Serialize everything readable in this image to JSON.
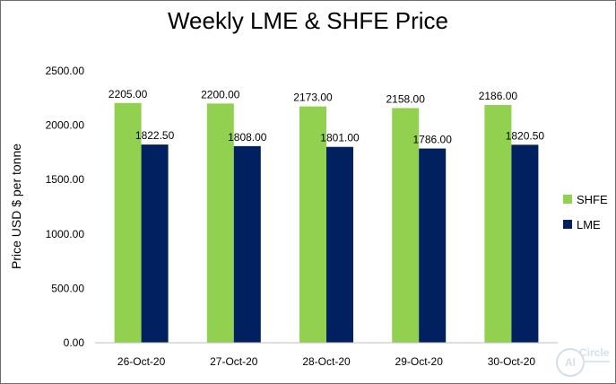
{
  "chart_data": {
    "type": "bar",
    "title": "Weekly LME & SHFE Price",
    "xlabel": "",
    "ylabel": "Price  USD $  per  tonne",
    "categories": [
      "26-Oct-20",
      "27-Oct-20",
      "28-Oct-20",
      "29-Oct-20",
      "30-Oct-20"
    ],
    "series": [
      {
        "name": "SHFE",
        "color": "#92d050",
        "values": [
          2205.0,
          2200.0,
          2173.0,
          2158.0,
          2186.0
        ]
      },
      {
        "name": "LME",
        "color": "#002060",
        "values": [
          1822.5,
          1808.0,
          1801.0,
          1786.0,
          1820.5
        ]
      }
    ],
    "ylim": [
      0,
      2500
    ],
    "yticks": [
      0,
      500,
      1000,
      1500,
      2000,
      2500
    ],
    "grid": false,
    "legend_position": "right"
  },
  "watermark": {
    "mark": "Al",
    "text": "Circle"
  }
}
